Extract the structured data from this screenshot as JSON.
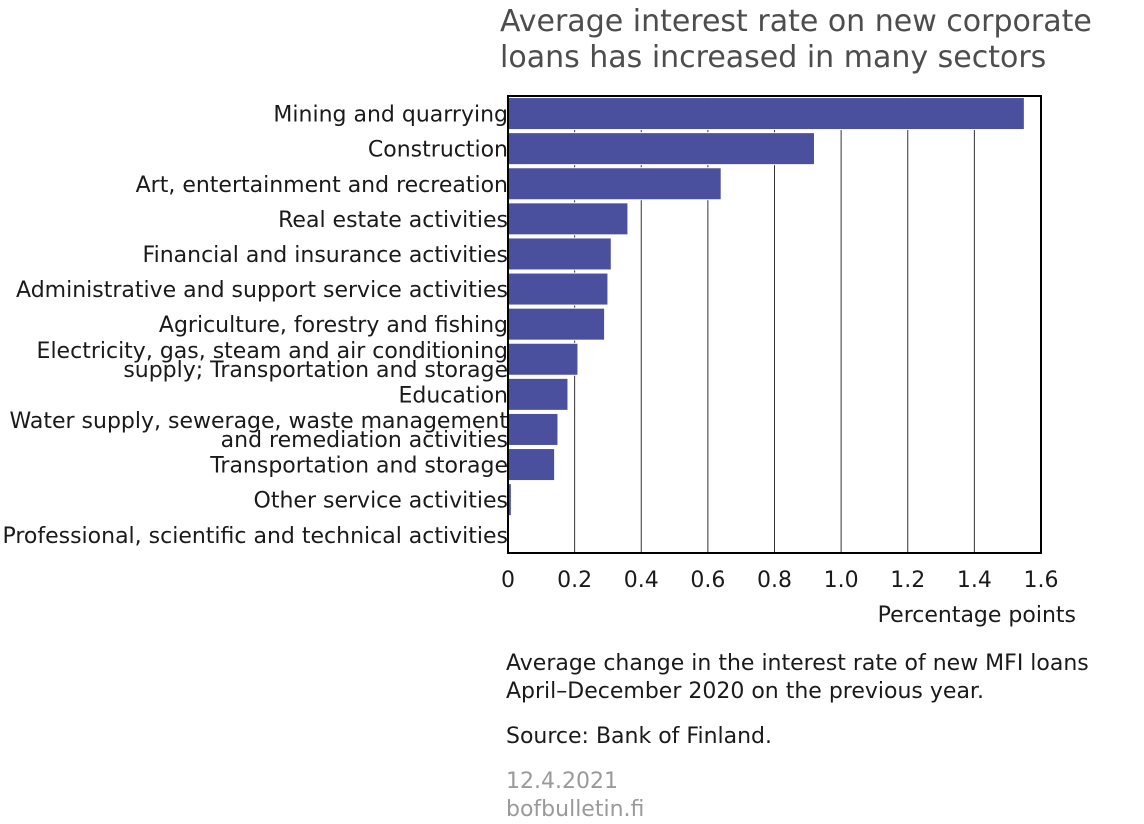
{
  "chart_data": {
    "type": "bar",
    "orientation": "horizontal",
    "title": [
      "Average interest rate on new corporate",
      "loans has increased in many sectors"
    ],
    "xlabel": "Percentage points",
    "xlim": [
      0,
      1.6
    ],
    "xticks": [
      "0",
      "0.2",
      "0.4",
      "0.6",
      "0.8",
      "1.0",
      "1.2",
      "1.4",
      "1.6"
    ],
    "xtick_values": [
      0,
      0.2,
      0.4,
      0.6,
      0.8,
      1.0,
      1.2,
      1.4,
      1.6
    ],
    "grid": "vertical",
    "bar_color": "#4a4f9e",
    "categories": [
      {
        "label": [
          "Mining and quarrying"
        ],
        "value": 1.55
      },
      {
        "label": [
          "Construction"
        ],
        "value": 0.92
      },
      {
        "label": [
          "Art, entertainment and recreation"
        ],
        "value": 0.64
      },
      {
        "label": [
          "Real estate activities"
        ],
        "value": 0.36
      },
      {
        "label": [
          "Financial and insurance activities"
        ],
        "value": 0.31
      },
      {
        "label": [
          "Administrative and support service activities"
        ],
        "value": 0.3
      },
      {
        "label": [
          "Agriculture, forestry and fishing"
        ],
        "value": 0.29
      },
      {
        "label": [
          "Electricity, gas, steam  and air conditioning",
          "supply; Transportation and storage"
        ],
        "value": 0.21
      },
      {
        "label": [
          "Education"
        ],
        "value": 0.18
      },
      {
        "label": [
          "Water supply, sewerage, waste management",
          "and remediation activities"
        ],
        "value": 0.15
      },
      {
        "label": [
          "Transportation and storage"
        ],
        "value": 0.14
      },
      {
        "label": [
          "Other service activities"
        ],
        "value": 0.01
      },
      {
        "label": [
          "Professional, scientific and technical activities"
        ],
        "value": 0.003
      }
    ]
  },
  "notes": {
    "description_line1": "Average change in the interest rate of new MFI loans",
    "description_line2": "April–December 2020 on the previous year.",
    "source": "Source: Bank of Finland.",
    "date": "12.4.2021",
    "site": "bofbulletin.fi"
  }
}
